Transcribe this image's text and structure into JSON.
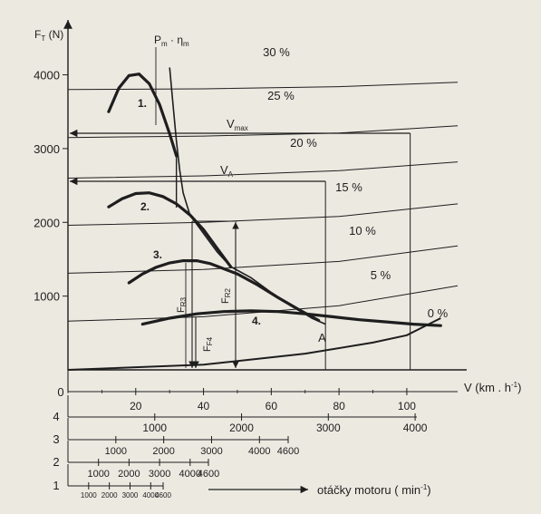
{
  "chart_data": {
    "type": "line",
    "title": "",
    "y_axis": {
      "label_main": "F",
      "label_sub": "T",
      "label_unit": " (N)",
      "ticks": [
        {
          "label": "4000",
          "value": 4000
        },
        {
          "label": "3000",
          "value": 3000
        },
        {
          "label": "2000",
          "value": 2000
        },
        {
          "label": "1000",
          "value": 1000
        }
      ],
      "range": [
        0,
        4400
      ]
    },
    "x_axis": {
      "label": "V (km . h",
      "label_sup": "-1",
      "label_end": ")",
      "zero_label": "0",
      "ticks": [
        {
          "label": "20",
          "value": 20
        },
        {
          "label": "40",
          "value": 40
        },
        {
          "label": "60",
          "value": 60
        },
        {
          "label": "80",
          "value": 80
        },
        {
          "label": "100",
          "value": 100
        }
      ],
      "range": [
        0,
        115
      ]
    },
    "power_label": "P",
    "power_label_sub": "m",
    "power_label_mid": " · η",
    "power_label_sub2": "m",
    "gear_curves": [
      {
        "name": "1.",
        "points": [
          [
            12,
            3500
          ],
          [
            15,
            3820
          ],
          [
            18,
            3990
          ],
          [
            21,
            4010
          ],
          [
            24,
            3880
          ],
          [
            27,
            3600
          ],
          [
            30,
            3200
          ],
          [
            32,
            2900
          ]
        ]
      },
      {
        "name": "2.",
        "points": [
          [
            12,
            2210
          ],
          [
            16,
            2320
          ],
          [
            20,
            2390
          ],
          [
            24,
            2400
          ],
          [
            28,
            2350
          ],
          [
            32,
            2250
          ],
          [
            36,
            2100
          ],
          [
            40,
            1900
          ],
          [
            44,
            1650
          ],
          [
            48,
            1400
          ]
        ]
      },
      {
        "name": "3.",
        "points": [
          [
            18,
            1180
          ],
          [
            22,
            1300
          ],
          [
            26,
            1390
          ],
          [
            30,
            1450
          ],
          [
            34,
            1480
          ],
          [
            38,
            1480
          ],
          [
            42,
            1440
          ],
          [
            46,
            1370
          ],
          [
            50,
            1300
          ],
          [
            56,
            1150
          ],
          [
            62,
            980
          ],
          [
            68,
            820
          ],
          [
            74,
            670
          ]
        ]
      },
      {
        "name": "4.",
        "points": [
          [
            22,
            620
          ],
          [
            30,
            700
          ],
          [
            38,
            760
          ],
          [
            46,
            790
          ],
          [
            54,
            800
          ],
          [
            62,
            790
          ],
          [
            70,
            760
          ],
          [
            78,
            720
          ],
          [
            86,
            680
          ],
          [
            94,
            650
          ],
          [
            102,
            620
          ],
          [
            110,
            600
          ]
        ]
      }
    ],
    "power_curve": {
      "points": [
        [
          30,
          4100
        ],
        [
          31,
          3600
        ],
        [
          32,
          3100
        ],
        [
          33,
          2700
        ],
        [
          34,
          2400
        ],
        [
          36,
          2100
        ],
        [
          40,
          1850
        ],
        [
          44,
          1600
        ],
        [
          48,
          1400
        ],
        [
          54,
          1250
        ],
        [
          60,
          1050
        ],
        [
          66,
          870
        ],
        [
          72,
          700
        ],
        [
          76,
          620
        ]
      ]
    },
    "slope_lines": [
      {
        "name": "30 %",
        "points": [
          [
            0,
            3800
          ],
          [
            40,
            3810
          ],
          [
            80,
            3840
          ],
          [
            115,
            3900
          ]
        ]
      },
      {
        "name": "25 %",
        "points": [
          [
            0,
            3150
          ],
          [
            40,
            3170
          ],
          [
            80,
            3210
          ],
          [
            115,
            3310
          ]
        ]
      },
      {
        "name": "20 %",
        "points": [
          [
            0,
            2600
          ],
          [
            40,
            2630
          ],
          [
            80,
            2700
          ],
          [
            115,
            2820
          ]
        ]
      },
      {
        "name": "15 %",
        "points": [
          [
            0,
            1960
          ],
          [
            40,
            2000
          ],
          [
            80,
            2080
          ],
          [
            115,
            2250
          ]
        ]
      },
      {
        "name": "10 %",
        "points": [
          [
            0,
            1310
          ],
          [
            40,
            1360
          ],
          [
            80,
            1470
          ],
          [
            115,
            1680
          ]
        ]
      },
      {
        "name": "5 %",
        "points": [
          [
            0,
            660
          ],
          [
            40,
            720
          ],
          [
            80,
            870
          ],
          [
            115,
            1140
          ]
        ]
      },
      {
        "name": "0 %",
        "points": [
          [
            0,
            0
          ],
          [
            40,
            70
          ],
          [
            70,
            220
          ],
          [
            90,
            370
          ],
          [
            100,
            470
          ],
          [
            110,
            700
          ]
        ]
      }
    ],
    "vmax": {
      "label": "V",
      "label_sub": "max",
      "value": 101
    },
    "va": {
      "label": "V",
      "label_sub": "A",
      "value": 76
    },
    "point_a": {
      "label": "A",
      "x": 76,
      "y": 600
    },
    "forces": [
      {
        "label": "F",
        "label_sub": "R2",
        "x": 47,
        "y": 1880
      },
      {
        "label": "F",
        "label_sub": "R3",
        "x": 35,
        "y": 1920
      },
      {
        "label": "F",
        "label_sub": "F4",
        "x": 37,
        "y": 700
      }
    ],
    "grid": false,
    "legend": "none"
  },
  "rpm_scales": [
    {
      "gear": "4",
      "ticks": [
        {
          "label": "1000",
          "rpm": 1000
        },
        {
          "label": "2000",
          "rpm": 2000
        },
        {
          "label": "3000",
          "rpm": 3000
        },
        {
          "label": "4000",
          "rpm": 4000
        }
      ]
    },
    {
      "gear": "3",
      "ticks": [
        {
          "label": "1000",
          "rpm": 1000
        },
        {
          "label": "2000",
          "rpm": 2000
        },
        {
          "label": "3000",
          "rpm": 3000
        },
        {
          "label": "4000",
          "rpm": 4000
        },
        {
          "label": "4600",
          "rpm": 4600
        }
      ]
    },
    {
      "gear": "2",
      "ticks": [
        {
          "label": "1000",
          "rpm": 1000
        },
        {
          "label": "2000",
          "rpm": 2000
        },
        {
          "label": "3000",
          "rpm": 3000
        },
        {
          "label": "4000",
          "rpm": 4000
        },
        {
          "label": "4600",
          "rpm": 4600
        }
      ]
    },
    {
      "gear": "1",
      "ticks": [
        {
          "label": "1000",
          "rpm": 1000
        },
        {
          "label": "2000",
          "rpm": 2000
        },
        {
          "label": "3000",
          "rpm": 3000
        },
        {
          "label": "4000",
          "rpm": 4000
        },
        {
          "label": "4600",
          "rpm": 4600
        }
      ]
    }
  ],
  "motor_speed_label": "otáčky motoru ( min",
  "motor_speed_sup": "-1",
  "motor_speed_end": ")"
}
